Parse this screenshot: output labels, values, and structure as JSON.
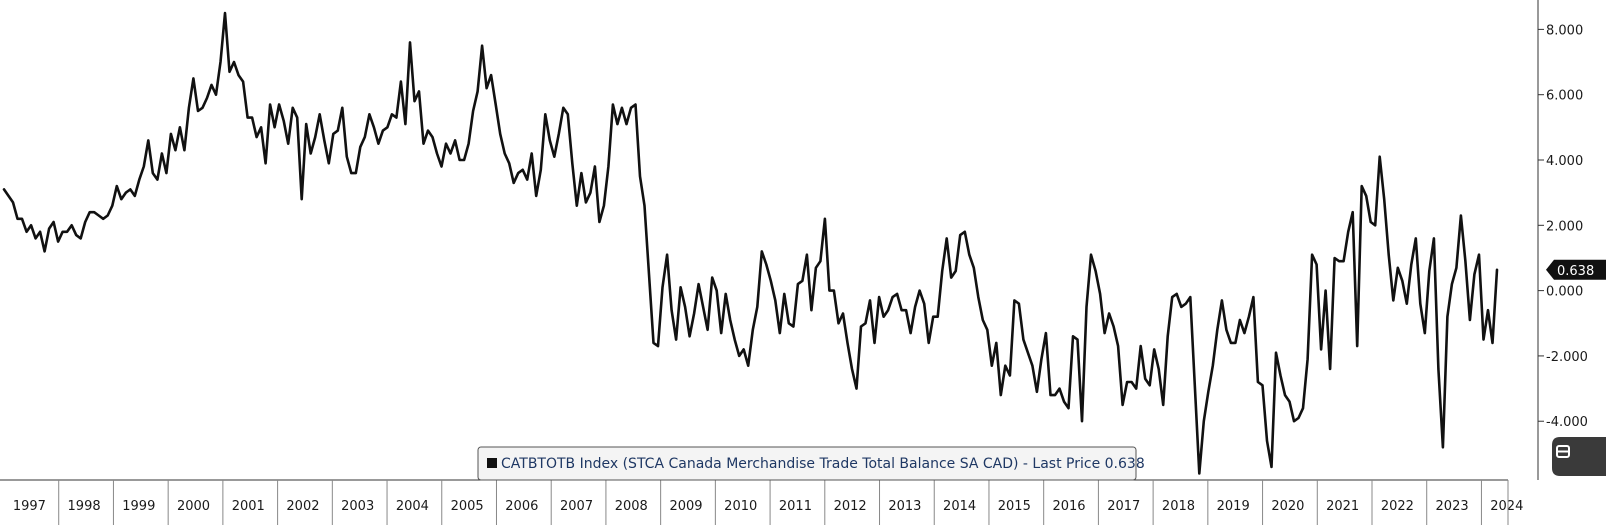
{
  "chart_data": {
    "type": "line",
    "series": [
      {
        "name": "CATBTOTB Index (STCA Canada Merchandise Trade Total Balance SA CAD) - Last Price 0.638",
        "color": "#111111",
        "values": [
          3.1,
          2.9,
          2.7,
          2.2,
          2.2,
          1.8,
          2.0,
          1.6,
          1.8,
          1.2,
          1.9,
          2.1,
          1.5,
          1.8,
          1.8,
          2.0,
          1.7,
          1.6,
          2.1,
          2.4,
          2.4,
          2.3,
          2.2,
          2.3,
          2.6,
          3.2,
          2.8,
          3.0,
          3.1,
          2.9,
          3.4,
          3.8,
          4.6,
          3.6,
          3.4,
          4.2,
          3.6,
          4.8,
          4.3,
          5.0,
          4.3,
          5.6,
          6.5,
          5.5,
          5.6,
          5.9,
          6.3,
          6.0,
          7.0,
          8.5,
          6.7,
          7.0,
          6.6,
          6.4,
          5.3,
          5.3,
          4.7,
          5.0,
          3.9,
          5.7,
          5.0,
          5.7,
          5.2,
          4.5,
          5.6,
          5.3,
          2.8,
          5.1,
          4.2,
          4.7,
          5.4,
          4.6,
          3.9,
          4.8,
          4.9,
          5.6,
          4.1,
          3.6,
          3.6,
          4.4,
          4.7,
          5.4,
          5.0,
          4.5,
          4.9,
          5.0,
          5.4,
          5.3,
          6.4,
          5.1,
          7.6,
          5.8,
          6.1,
          4.5,
          4.9,
          4.7,
          4.2,
          3.8,
          4.5,
          4.2,
          4.6,
          4.0,
          4.0,
          4.5,
          5.5,
          6.1,
          7.5,
          6.2,
          6.6,
          5.7,
          4.8,
          4.2,
          3.9,
          3.3,
          3.6,
          3.7,
          3.4,
          4.2,
          2.9,
          3.7,
          5.4,
          4.6,
          4.1,
          4.8,
          5.6,
          5.4,
          3.9,
          2.6,
          3.6,
          2.7,
          3.0,
          3.8,
          2.1,
          2.6,
          3.8,
          5.7,
          5.1,
          5.6,
          5.1,
          5.6,
          5.7,
          3.5,
          2.6,
          0.5,
          -1.6,
          -1.7,
          0.1,
          1.1,
          -0.6,
          -1.5,
          0.1,
          -0.5,
          -1.4,
          -0.7,
          0.2,
          -0.5,
          -1.2,
          0.4,
          0.0,
          -1.3,
          -0.1,
          -0.9,
          -1.5,
          -2.0,
          -1.8,
          -2.3,
          -1.2,
          -0.5,
          1.2,
          0.8,
          0.3,
          -0.3,
          -1.3,
          -0.1,
          -1.0,
          -1.1,
          0.2,
          0.3,
          1.1,
          -0.6,
          0.7,
          0.9,
          2.2,
          0.0,
          0.0,
          -1.0,
          -0.7,
          -1.6,
          -2.4,
          -3.0,
          -1.1,
          -1.0,
          -0.3,
          -1.6,
          -0.2,
          -0.8,
          -0.6,
          -0.2,
          -0.1,
          -0.6,
          -0.6,
          -1.3,
          -0.5,
          0.0,
          -0.4,
          -1.6,
          -0.8,
          -0.8,
          0.6,
          1.6,
          0.4,
          0.6,
          1.7,
          1.8,
          1.1,
          0.7,
          -0.2,
          -0.9,
          -1.2,
          -2.3,
          -1.6,
          -3.2,
          -2.3,
          -2.6,
          -0.3,
          -0.4,
          -1.5,
          -1.9,
          -2.3,
          -3.1,
          -2.1,
          -1.3,
          -3.2,
          -3.2,
          -3.0,
          -3.4,
          -3.6,
          -1.4,
          -1.5,
          -4.0,
          -0.5,
          1.1,
          0.6,
          -0.1,
          -1.3,
          -0.7,
          -1.1,
          -1.7,
          -3.5,
          -2.8,
          -2.8,
          -3.0,
          -1.7,
          -2.7,
          -2.9,
          -1.8,
          -2.4,
          -3.5,
          -1.4,
          -0.2,
          -0.1,
          -0.5,
          -0.4,
          -0.2,
          -2.9,
          -5.6,
          -4.0,
          -3.1,
          -2.3,
          -1.2,
          -0.3,
          -1.2,
          -1.6,
          -1.6,
          -0.9,
          -1.3,
          -0.8,
          -0.2,
          -2.8,
          -2.9,
          -4.6,
          -5.4,
          -1.9,
          -2.6,
          -3.2,
          -3.4,
          -4.0,
          -3.9,
          -3.6,
          -2.1,
          1.1,
          0.8,
          -1.8,
          0.0,
          -2.4,
          1.0,
          0.9,
          0.9,
          1.8,
          2.4,
          -1.7,
          3.2,
          2.9,
          2.1,
          2.0,
          4.1,
          2.8,
          1.1,
          -0.3,
          0.7,
          0.3,
          -0.4,
          0.8,
          1.6,
          -0.4,
          -1.3,
          0.6,
          1.6,
          -2.4,
          -4.8,
          -0.8,
          0.2,
          0.7,
          2.3,
          0.9,
          -0.9,
          0.5,
          1.1,
          -1.5,
          -0.6,
          -1.6,
          0.638
        ]
      }
    ],
    "x_axis": {
      "type": "time",
      "start": "1997-01",
      "frequency": "monthly",
      "tick_labels": [
        "1997",
        "1998",
        "1999",
        "2000",
        "2001",
        "2002",
        "2003",
        "2004",
        "2005",
        "2006",
        "2007",
        "2008",
        "2009",
        "2010",
        "2011",
        "2012",
        "2013",
        "2014",
        "2015",
        "2016",
        "2017",
        "2018",
        "2019",
        "2020",
        "2021",
        "2022",
        "2023",
        "2024"
      ]
    },
    "y_axis": {
      "position": "right",
      "ylim": [
        -5.8,
        8.9
      ],
      "ticks": [
        8,
        6,
        4,
        2,
        0,
        -2,
        -4
      ],
      "tick_labels": [
        "8.000",
        "6.000",
        "4.000",
        "2.000",
        "0.000",
        "-2.000",
        "-4.000"
      ]
    },
    "grid": false,
    "last_value_label": "0.638",
    "legend": {
      "placement": "bottom-center",
      "text": "CATBTOTB Index (STCA Canada Merchandise Trade Total Balance SA CAD) - Last Price 0.638"
    }
  },
  "colors": {
    "line": "#111111",
    "axis": "#333333",
    "legend_text": "#1f3864",
    "legend_border": "#555555",
    "legend_bg": "#f4f4f4",
    "last_label_bg": "#111111"
  },
  "icons": {
    "edge_tab": "chart-option-tab-icon"
  }
}
